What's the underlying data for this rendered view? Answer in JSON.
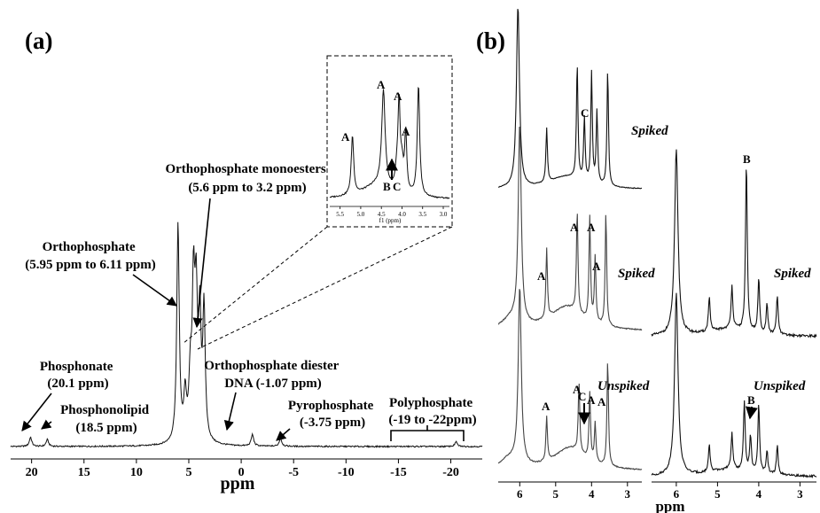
{
  "panel_a": {
    "label": "(a)",
    "x_label": "ppm",
    "inset": {
      "axis_label": "f1 (ppm)"
    },
    "annotations": {
      "phosphonate": [
        "Phosphonate",
        "(20.1 ppm)"
      ],
      "phosphonolipid": [
        "Phosphonolipid",
        "(18.5 ppm)"
      ],
      "orthophosphate": [
        "Orthophosphate",
        "(5.95 ppm to 6.11 ppm)"
      ],
      "monoesters": [
        "Orthophosphate monoesters",
        "(5.6 ppm to 3.2 ppm)"
      ],
      "diester": [
        "Orthophosphate diester",
        "DNA (-1.07 ppm)"
      ],
      "pyrophosphate": [
        "Pyrophosphate",
        "(-3.75 ppm)"
      ],
      "polyphosphate": [
        "Polyphosphate",
        "(-19 to -22ppm)"
      ]
    }
  },
  "panel_b": {
    "label": "(b)",
    "x_label": "ppm",
    "spectrum_labels": {
      "left_top": "Spiked",
      "left_mid": "Spiked",
      "left_bot": "Unspiked",
      "right_top": "Spiked",
      "right_bot": "Unspiked"
    }
  },
  "chart_data": [
    {
      "type": "line",
      "panel": "(a)",
      "xlabel": "ppm",
      "x_reversed": true,
      "xlim": [
        22,
        -23
      ],
      "xticks": [
        20,
        15,
        10,
        5,
        0,
        -5,
        -10,
        -15,
        -20
      ],
      "series": [
        {
          "peaks": [
            {
              "x": 20.1,
              "height": 0.04
            },
            {
              "x": 18.5,
              "height": 0.03
            },
            {
              "x": 6.03,
              "height": 0.95
            },
            {
              "x": 5.35,
              "height": 0.18
            },
            {
              "x": 4.85,
              "height": 0.22
            },
            {
              "x": 4.55,
              "height": 0.6
            },
            {
              "x": 4.3,
              "height": 0.55
            },
            {
              "x": 3.95,
              "height": 0.5
            },
            {
              "x": 3.55,
              "height": 0.56
            },
            {
              "x": -1.07,
              "height": 0.05
            },
            {
              "x": -3.75,
              "height": 0.035
            },
            {
              "x": -20.5,
              "height": 0.02
            }
          ]
        }
      ],
      "inset": {
        "xlabel": "f1 (ppm)",
        "xticks": [
          5.5,
          5.0,
          4.5,
          4.0,
          3.5,
          3.0
        ],
        "peak_labels": [
          {
            "label": "A",
            "x": 5.2
          },
          {
            "label": "A",
            "x": 4.45
          },
          {
            "label": "A",
            "x": 4.07
          },
          {
            "label": "A",
            "x": 3.93
          },
          {
            "label": "B",
            "x": 4.1
          },
          {
            "label": "C",
            "x": 3.98
          }
        ]
      }
    },
    {
      "type": "line",
      "panel": "(b)",
      "xlabel": "ppm",
      "x_reversed": true,
      "xticks": [
        6,
        5,
        4,
        3
      ],
      "series": [
        {
          "label": "Spiked",
          "column": "left",
          "peaks": [
            {
              "x": 6.05,
              "height": 1.0
            },
            {
              "x": 5.25,
              "height": 0.3
            },
            {
              "x": 4.4,
              "height": 0.64
            },
            {
              "x": 4.2,
              "height": 0.35
            },
            {
              "x": 4.0,
              "height": 0.61
            },
            {
              "x": 3.85,
              "height": 0.4
            },
            {
              "x": 3.55,
              "height": 0.64
            }
          ],
          "peak_labels": [
            "C"
          ]
        },
        {
          "label": "Spiked",
          "column": "left",
          "peaks": [
            {
              "x": 6.0,
              "height": 1.0
            },
            {
              "x": 5.25,
              "height": 0.35
            },
            {
              "x": 4.4,
              "height": 0.52
            },
            {
              "x": 4.05,
              "height": 0.52
            },
            {
              "x": 3.9,
              "height": 0.33
            },
            {
              "x": 3.6,
              "height": 0.57
            }
          ],
          "peak_labels": [
            "A",
            "A",
            "A",
            "A"
          ]
        },
        {
          "label": "Unspiked",
          "column": "left",
          "peaks": [
            {
              "x": 6.0,
              "height": 1.0
            },
            {
              "x": 5.25,
              "height": 0.25
            },
            {
              "x": 4.35,
              "height": 0.4
            },
            {
              "x": 4.05,
              "height": 0.38
            },
            {
              "x": 3.9,
              "height": 0.22
            },
            {
              "x": 3.55,
              "height": 0.6
            }
          ],
          "peak_labels": [
            "A",
            "A",
            "A",
            "C",
            "A"
          ]
        },
        {
          "label": "Spiked",
          "column": "right",
          "peaks": [
            {
              "x": 6.0,
              "height": 0.95
            },
            {
              "x": 5.2,
              "height": 0.18
            },
            {
              "x": 4.65,
              "height": 0.22
            },
            {
              "x": 4.3,
              "height": 0.87
            },
            {
              "x": 4.0,
              "height": 0.28
            },
            {
              "x": 3.8,
              "height": 0.15
            },
            {
              "x": 3.55,
              "height": 0.2
            }
          ],
          "peak_labels": [
            "B"
          ]
        },
        {
          "label": "Unspiked",
          "column": "right",
          "peaks": [
            {
              "x": 6.0,
              "height": 1.0
            },
            {
              "x": 5.2,
              "height": 0.15
            },
            {
              "x": 4.65,
              "height": 0.2
            },
            {
              "x": 4.35,
              "height": 0.38
            },
            {
              "x": 4.2,
              "height": 0.2
            },
            {
              "x": 4.0,
              "height": 0.38
            },
            {
              "x": 3.8,
              "height": 0.13
            },
            {
              "x": 3.55,
              "height": 0.16
            }
          ],
          "peak_labels": [
            "B"
          ]
        }
      ]
    }
  ]
}
